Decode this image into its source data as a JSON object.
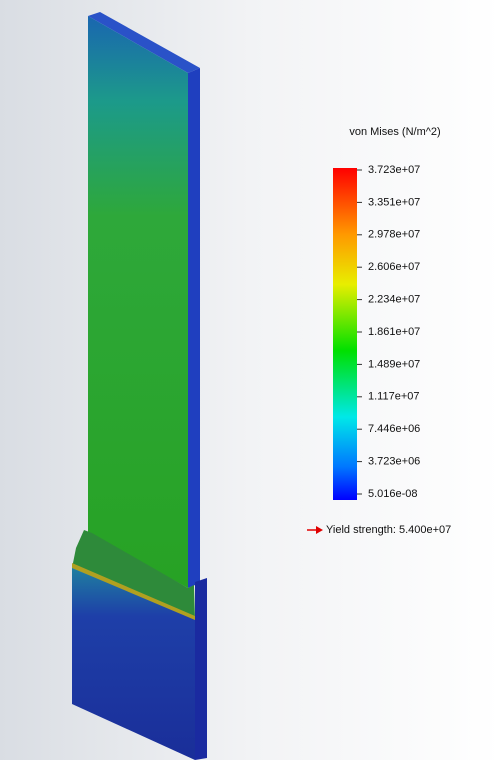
{
  "legend": {
    "title": "von Mises (N/m^2)",
    "labels": [
      "3.723e+07",
      "3.351e+07",
      "2.978e+07",
      "2.606e+07",
      "2.234e+07",
      "1.861e+07",
      "1.489e+07",
      "1.117e+07",
      "7.446e+06",
      "3.723e+06",
      "5.016e-08"
    ],
    "yield": "Yield strength: 5.400e+07"
  }
}
